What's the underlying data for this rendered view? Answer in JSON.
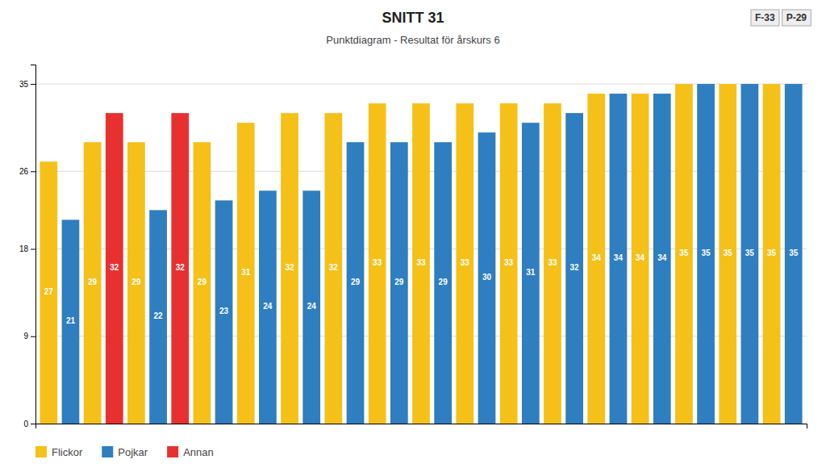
{
  "chart_data": {
    "type": "bar",
    "title": "SNITT 31",
    "subtitle": "Punktdiagram - Resultat för årskurs 6",
    "annotations": [
      "F-33",
      "P-29"
    ],
    "categories": [
      null,
      null,
      null,
      null,
      null,
      null,
      null,
      null,
      null,
      null,
      null,
      null,
      null,
      null,
      null,
      null,
      null,
      null,
      null,
      null,
      null,
      null,
      null,
      null,
      null,
      null,
      null,
      null,
      null,
      null,
      null,
      null,
      null,
      null,
      null
    ],
    "series": [
      {
        "name": "Flickor",
        "color": "#F5C118",
        "values": [
          27,
          null,
          29,
          null,
          29,
          null,
          null,
          29,
          null,
          31,
          null,
          32,
          null,
          32,
          null,
          33,
          null,
          33,
          null,
          33,
          null,
          33,
          null,
          33,
          null,
          34,
          null,
          34,
          null,
          35,
          null,
          35,
          null,
          35,
          null
        ]
      },
      {
        "name": "Pojkar",
        "color": "#2E7EC0",
        "values": [
          null,
          21,
          null,
          null,
          null,
          22,
          null,
          null,
          23,
          null,
          24,
          null,
          24,
          null,
          29,
          null,
          29,
          null,
          29,
          null,
          30,
          null,
          31,
          null,
          32,
          null,
          34,
          null,
          34,
          null,
          35,
          null,
          35,
          null,
          35
        ]
      },
      {
        "name": "Annan",
        "color": "#E83030",
        "values": [
          null,
          null,
          null,
          32,
          null,
          null,
          32,
          null,
          null,
          null,
          null,
          null,
          null,
          null,
          null,
          null,
          null,
          null,
          null,
          null,
          null,
          null,
          null,
          null,
          null,
          null,
          null,
          null,
          null,
          null,
          null,
          null,
          null,
          null,
          null
        ]
      }
    ],
    "ylim": [
      0,
      37
    ],
    "yticks": [
      0,
      9,
      18,
      26,
      35
    ],
    "grid": true,
    "data_labels": true,
    "tick_labels": "y",
    "legend": "bottom-left"
  }
}
